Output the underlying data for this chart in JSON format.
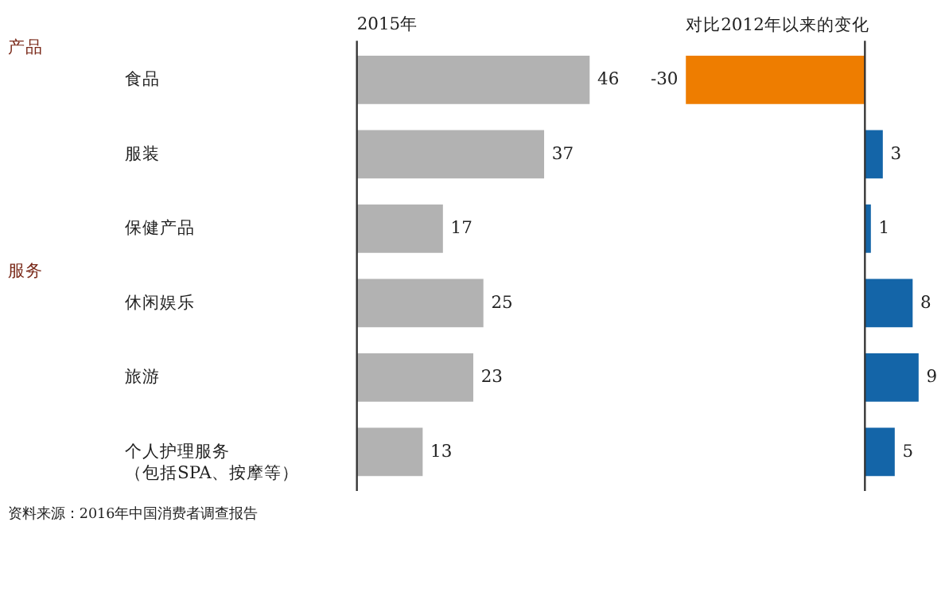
{
  "chart_data": [
    {
      "type": "bar",
      "orientation": "horizontal",
      "title": "2015年",
      "categories": [
        "食品",
        "服装",
        "保健产品",
        "休闲娱乐",
        "旅游",
        "个人护理服务（包括SPA、按摩等）"
      ],
      "values": [
        46,
        37,
        17,
        25,
        23,
        13
      ],
      "color": "#b2b2b2",
      "data_labels": true,
      "grid": false,
      "legend": false,
      "tick_labels": "y",
      "annotations": [
        "产品",
        "服务",
        "资料来源：2016年中国消费者调查报告"
      ]
    },
    {
      "type": "bar",
      "orientation": "horizontal",
      "title": "对比2012年以来的变化",
      "categories": [
        null,
        null,
        null,
        null,
        null,
        null
      ],
      "values": [
        -30,
        3,
        1,
        8,
        9,
        5
      ],
      "colors": [
        "#ee7d00",
        "#1465a8",
        "#1465a8",
        "#1465a8",
        "#1465a8",
        "#1465a8"
      ],
      "data_labels": true,
      "grid": false,
      "legend": false,
      "tick_labels": false
    }
  ]
}
